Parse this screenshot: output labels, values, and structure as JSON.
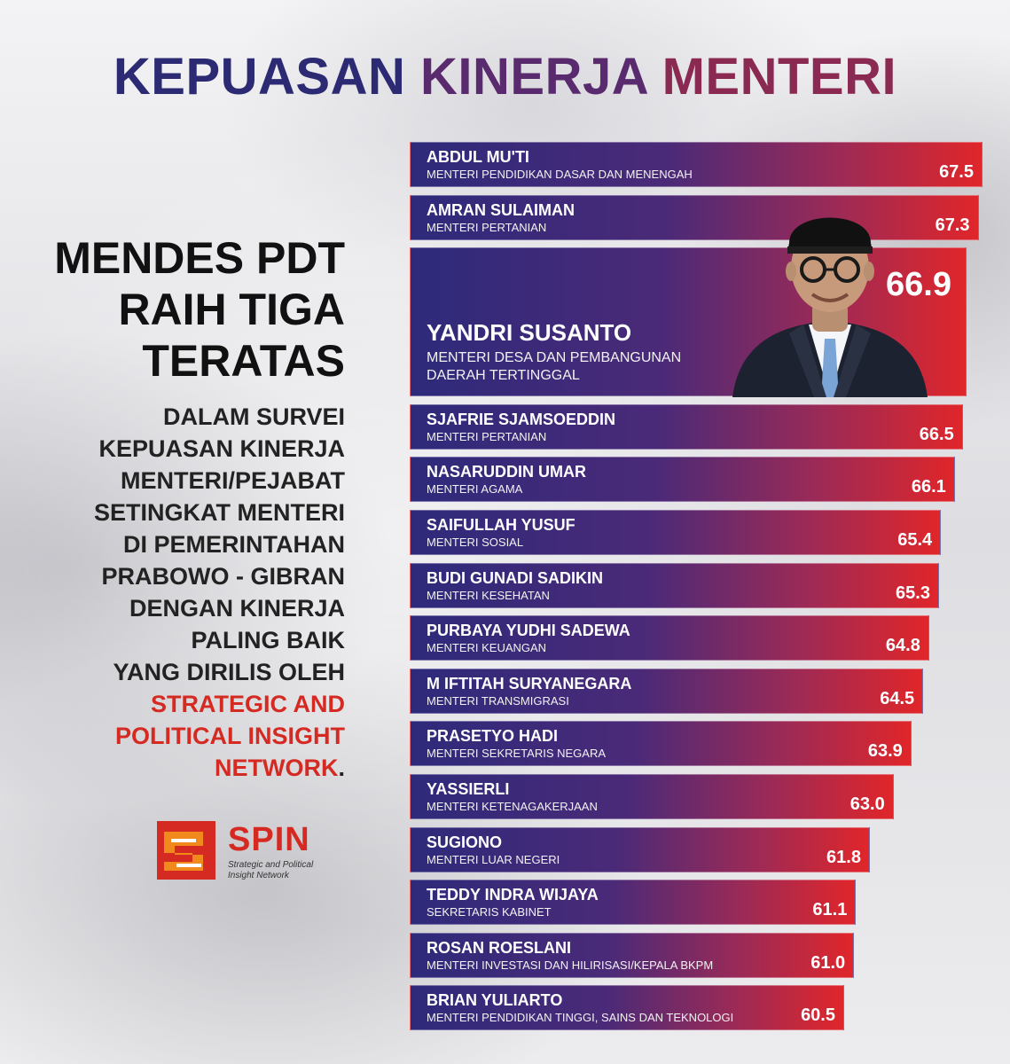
{
  "title": {
    "part1": "KEPUASAN",
    "part2": "KINERJA",
    "part3": "MENTERI"
  },
  "headline": {
    "line1": "MENDES PDT",
    "line2": "RAIH TIGA",
    "line3": "TERATAS"
  },
  "description": {
    "lines": [
      "DALAM SURVEI",
      "KEPUASAN KINERJA",
      "MENTERI/PEJABAT",
      "SETINGKAT MENTERI",
      "DI PEMERINTAHAN",
      "PRABOWO - GIBRAN",
      "DENGAN KINERJA",
      "PALING BAIK",
      "YANG DIRILIS OLEH"
    ],
    "org_line1": "STRATEGIC AND",
    "org_line2": "POLITICAL INSIGHT",
    "org_line3": "NETWORK",
    "org_end": "."
  },
  "logo": {
    "name": "SPIN",
    "subtitle_line1": "Strategic and Political",
    "subtitle_line2": "Insight Network",
    "color": "#d42a22",
    "accent": "#f08a1c"
  },
  "colors": {
    "bar_start": "#2e2a7a",
    "bar_end": "#e0262a",
    "title_blue": "#2b2a73",
    "accent_red": "#d42a22"
  },
  "chart_data": {
    "type": "bar",
    "orientation": "horizontal",
    "categories": [
      "ABDUL MU'TI",
      "AMRAN SULAIMAN",
      "YANDRI SUSANTO",
      "SJAFRIE SJAMSOEDDIN",
      "NASARUDDIN UMAR",
      "SAIFULLAH YUSUF",
      "BUDI GUNADI SADIKIN",
      "PURBAYA YUDHI SADEWA",
      "M IFTITAH SURYANEGARA",
      "PRASETYO HADI",
      "YASSIERLI",
      "SUGIONO",
      "TEDDY INDRA WIJAYA",
      "ROSAN ROESLANI",
      "BRIAN YULIARTO"
    ],
    "roles": [
      "MENTERI PENDIDIKAN DASAR DAN MENENGAH",
      "MENTERI PERTANIAN",
      "MENTERI DESA DAN PEMBANGUNAN DAERAH TERTINGGAL",
      "MENTERI PERTANIAN",
      "MENTERI AGAMA",
      "MENTERI SOSIAL",
      "MENTERI KESEHATAN",
      "MENTERI KEUANGAN",
      "MENTERI TRANSMIGRASI",
      "MENTERI SEKRETARIS NEGARA",
      "MENTERI KETENAGAKERJAAN",
      "MENTERI LUAR NEGERI",
      "SEKRETARIS KABINET",
      "MENTERI INVESTASI DAN HILIRISASI/KEPALA BKPM",
      "MENTERI PENDIDIKAN TINGGI, SAINS DAN TEKNOLOGI"
    ],
    "values": [
      67.5,
      67.3,
      66.9,
      66.5,
      66.1,
      65.4,
      65.3,
      64.8,
      64.5,
      63.9,
      63.0,
      61.8,
      61.1,
      61.0,
      60.5
    ],
    "value_labels": [
      "67.5",
      "67.3",
      "66.9",
      "66.5",
      "66.1",
      "65.4",
      "65.3",
      "64.8",
      "64.5",
      "63.9",
      "63.0",
      "61.8",
      "61.1",
      "61.0",
      "60.5"
    ],
    "highlighted": "YANDRI SUSANTO",
    "title": "KEPUASAN KINERJA MENTERI",
    "xlabel": "",
    "ylabel": "",
    "grid": false,
    "legend": "none"
  }
}
